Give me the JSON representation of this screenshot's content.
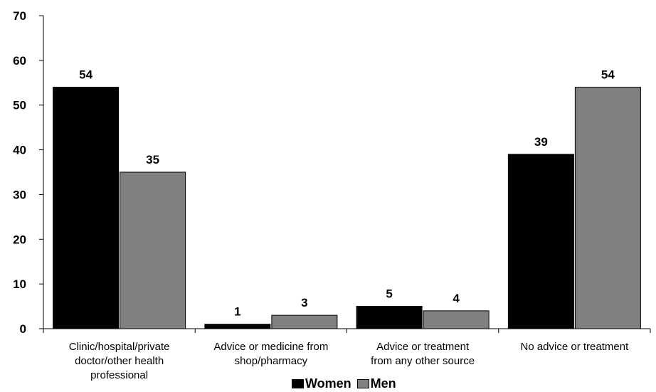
{
  "chart_data": {
    "type": "bar",
    "title": "",
    "xlabel": "",
    "ylabel": "",
    "ylim": [
      0,
      70
    ],
    "yticks": [
      "0",
      "10",
      "20",
      "30",
      "40",
      "50",
      "60",
      "70"
    ],
    "categories": [
      "Clinic/hospital/private\ndoctor/other health\nprofessional",
      "Advice or medicine from\nshop/pharmacy",
      "Advice or treatment\nfrom any other source",
      "No advice or treatment"
    ],
    "series": [
      {
        "name": "Women",
        "color": "#000000",
        "values": [
          54,
          1,
          5,
          39
        ]
      },
      {
        "name": "Men",
        "color": "#808080",
        "values": [
          35,
          3,
          4,
          54
        ]
      }
    ],
    "legend": {
      "placement": "bottom-center"
    },
    "grid": false
  }
}
